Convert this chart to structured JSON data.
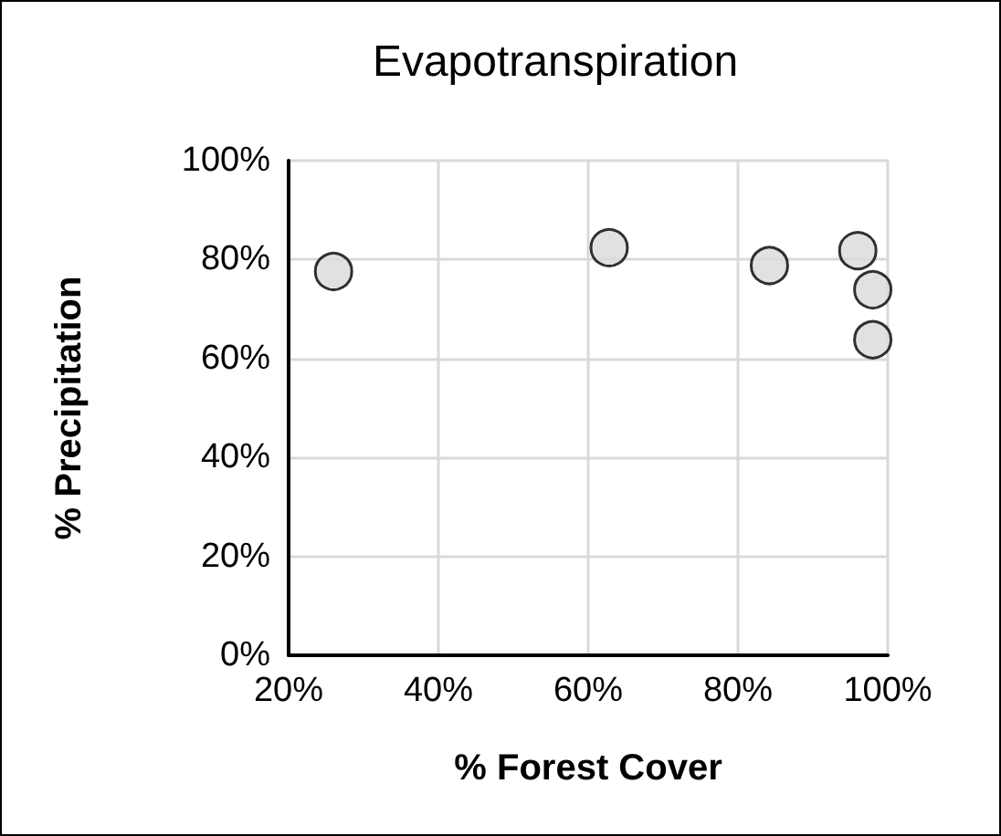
{
  "chart_data": {
    "type": "scatter",
    "title": "Evapotranspiration",
    "xlabel": "% Forest Cover",
    "ylabel": "% Precipitation",
    "x": [
      26,
      62.8,
      84.2,
      96,
      98,
      98
    ],
    "series": [
      {
        "color": "#d9d9d9",
        "values": [
          77.6,
          82.4,
          78.8,
          81.8,
          73.9,
          63.8
        ]
      }
    ],
    "xlim": [
      20,
      100
    ],
    "xticks": [
      {
        "value": 20,
        "label": "20%"
      },
      {
        "value": 40,
        "label": "40%"
      },
      {
        "value": 60,
        "label": "60%"
      },
      {
        "value": 80,
        "label": "80%"
      },
      {
        "value": 100,
        "label": "100%"
      }
    ],
    "ylim": [
      0,
      100
    ],
    "yticks": [
      {
        "value": 0,
        "label": "0%"
      },
      {
        "value": 20,
        "label": "20%"
      },
      {
        "value": 40,
        "label": "40%"
      },
      {
        "value": 60,
        "label": "60%"
      },
      {
        "value": 80,
        "label": "80%"
      },
      {
        "value": 100,
        "label": "100%"
      }
    ],
    "grid": true,
    "marker": "circle"
  }
}
